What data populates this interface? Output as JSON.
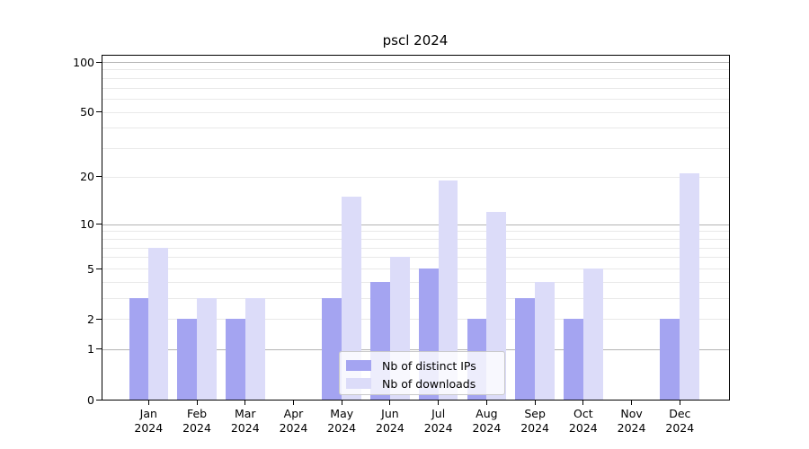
{
  "chart_data": {
    "type": "bar",
    "title": "pscl 2024",
    "categories": [
      "Jan",
      "Feb",
      "Mar",
      "Apr",
      "May",
      "Jun",
      "Jul",
      "Aug",
      "Sep",
      "Oct",
      "Nov",
      "Dec"
    ],
    "x_year_label": "2024",
    "series": [
      {
        "name": "Nb of distinct IPs",
        "color": "#a4a4f1",
        "values": [
          3,
          2,
          2,
          0,
          3,
          4,
          5,
          2,
          3,
          2,
          0,
          2
        ]
      },
      {
        "name": "Nb of downloads",
        "color": "#dcdcf9",
        "values": [
          7,
          3,
          3,
          0,
          15,
          6,
          19,
          12,
          4,
          5,
          0,
          21
        ]
      }
    ],
    "yscale": "log1p",
    "ylim": [
      0,
      112
    ],
    "y_ticks": [
      0,
      1,
      2,
      5,
      10,
      20,
      50,
      100
    ],
    "y_minor_gridlines": [
      2,
      3,
      4,
      5,
      6,
      7,
      8,
      9,
      20,
      30,
      40,
      50,
      60,
      70,
      80,
      90
    ],
    "y_major_gridlines": [
      1,
      10,
      100
    ],
    "grid": true,
    "legend_position": "lower center",
    "colors": {
      "axis": "#000000",
      "grid_minor": "#e9e9e9",
      "grid_major": "#b3b3b3",
      "background": "#ffffff",
      "legend_border": "#c9c9c9"
    }
  }
}
